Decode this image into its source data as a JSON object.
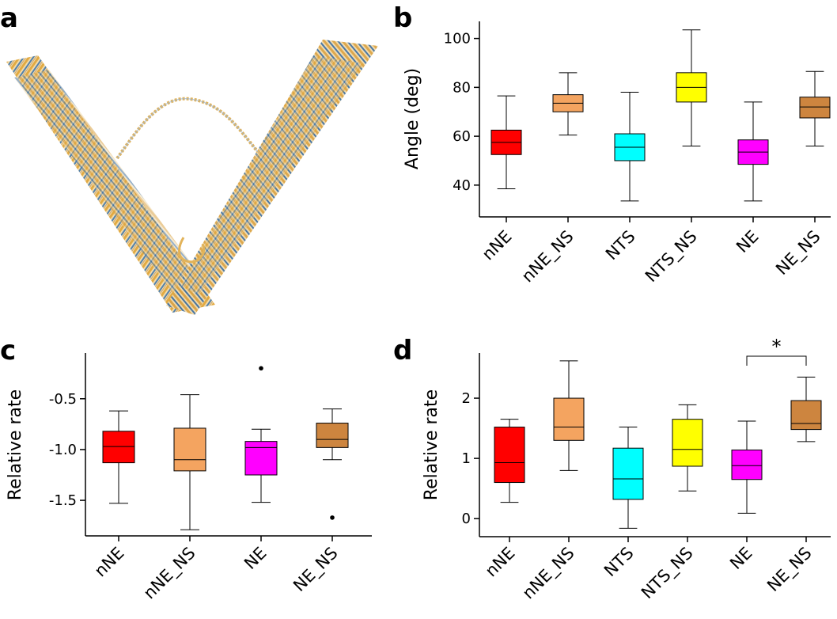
{
  "panels": {
    "a": {
      "letter": "a"
    },
    "b": {
      "letter": "b"
    },
    "c": {
      "letter": "c"
    },
    "d": {
      "letter": "d"
    }
  },
  "chart_data": [
    {
      "panel": "b",
      "type": "box",
      "ylabel": "Angle (deg)",
      "ylim": [
        27,
        107
      ],
      "yticks": [
        40,
        60,
        80,
        100
      ],
      "categories": [
        "nNE",
        "nNE_NS",
        "NTS",
        "NTS_NS",
        "NE",
        "NE_NS"
      ],
      "colors": [
        "#ff0000",
        "#f4a460",
        "#00ffff",
        "#ffff00",
        "#ff00ff",
        "#cd853f"
      ],
      "boxes": [
        {
          "whislo": 38.5,
          "q1": 52.5,
          "med": 57.5,
          "q3": 62.5,
          "whishi": 76.5
        },
        {
          "whislo": 60.5,
          "q1": 70,
          "med": 73.5,
          "q3": 77,
          "whishi": 86
        },
        {
          "whislo": 33.5,
          "q1": 50,
          "med": 55.5,
          "q3": 61,
          "whishi": 78
        },
        {
          "whislo": 56,
          "q1": 74,
          "med": 80,
          "q3": 86,
          "whishi": 103.5
        },
        {
          "whislo": 33.5,
          "q1": 48.5,
          "med": 53.5,
          "q3": 58.5,
          "whishi": 74
        },
        {
          "whislo": 56,
          "q1": 67.5,
          "med": 72,
          "q3": 76,
          "whishi": 86.5
        }
      ],
      "outliers": []
    },
    {
      "panel": "c",
      "type": "box",
      "ylabel": "Relative rate",
      "ylim": [
        -1.85,
        -0.05
      ],
      "yticks": [
        -0.5,
        -1.0,
        -1.5
      ],
      "ytick_labels": [
        "-0.5",
        "-1.0",
        "-1.5"
      ],
      "categories": [
        "nNE",
        "nNE_NS",
        "NE",
        "NE_NS"
      ],
      "colors": [
        "#ff0000",
        "#f4a460",
        "#ff00ff",
        "#cd853f"
      ],
      "boxes": [
        {
          "whislo": -1.53,
          "q1": -1.13,
          "med": -0.97,
          "q3": -0.82,
          "whishi": -0.62
        },
        {
          "whislo": -1.79,
          "q1": -1.21,
          "med": -1.1,
          "q3": -0.79,
          "whishi": -0.46
        },
        {
          "whislo": -1.52,
          "q1": -1.25,
          "med": -0.98,
          "q3": -0.92,
          "whishi": -0.8
        },
        {
          "whislo": -1.1,
          "q1": -0.98,
          "med": -0.9,
          "q3": -0.74,
          "whishi": -0.6
        }
      ],
      "outliers": [
        {
          "category": "NE",
          "value": -0.2
        },
        {
          "category": "NE_NS",
          "value": -1.67
        }
      ]
    },
    {
      "panel": "d",
      "type": "box",
      "ylabel": "Relative rate",
      "ylim": [
        -0.3,
        2.75
      ],
      "yticks": [
        0,
        1,
        2
      ],
      "categories": [
        "nNE",
        "nNE_NS",
        "NTS",
        "NTS_NS",
        "NE",
        "NE_NS"
      ],
      "colors": [
        "#ff0000",
        "#f4a460",
        "#00ffff",
        "#ffff00",
        "#ff00ff",
        "#cd853f"
      ],
      "boxes": [
        {
          "whislo": 0.27,
          "q1": 0.6,
          "med": 0.93,
          "q3": 1.52,
          "whishi": 1.65
        },
        {
          "whislo": 0.8,
          "q1": 1.3,
          "med": 1.52,
          "q3": 2.0,
          "whishi": 2.62
        },
        {
          "whislo": -0.16,
          "q1": 0.32,
          "med": 0.66,
          "q3": 1.17,
          "whishi": 1.52
        },
        {
          "whislo": 0.46,
          "q1": 0.87,
          "med": 1.15,
          "q3": 1.65,
          "whishi": 1.89
        },
        {
          "whislo": 0.09,
          "q1": 0.65,
          "med": 0.88,
          "q3": 1.14,
          "whishi": 1.62
        },
        {
          "whislo": 1.28,
          "q1": 1.48,
          "med": 1.58,
          "q3": 1.96,
          "whishi": 2.35
        }
      ],
      "outliers": [],
      "significance": {
        "from": "NE",
        "to": "NE_NS",
        "label": "*"
      }
    }
  ]
}
